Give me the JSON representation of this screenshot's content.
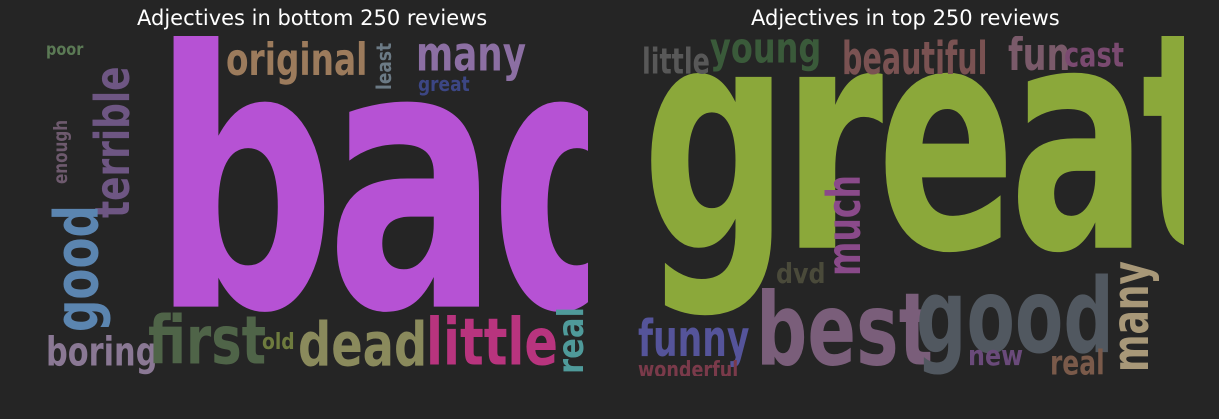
{
  "panels": [
    {
      "title": "Adjectives in bottom 250 reviews",
      "words": [
        {
          "text": "bad",
          "color": "#b652d4"
        },
        {
          "text": "original",
          "color": "#9c7b5c"
        },
        {
          "text": "many",
          "color": "#8c6fa3"
        },
        {
          "text": "least",
          "color": "#6b7a85"
        },
        {
          "text": "great",
          "color": "#3c4684"
        },
        {
          "text": "poor",
          "color": "#5b7a55"
        },
        {
          "text": "terrible",
          "color": "#6e5683"
        },
        {
          "text": "enough",
          "color": "#6e5a6e"
        },
        {
          "text": "good",
          "color": "#5b85b0"
        },
        {
          "text": "boring",
          "color": "#8a7894"
        },
        {
          "text": "first",
          "color": "#4f6448"
        },
        {
          "text": "old",
          "color": "#6e7b3e"
        },
        {
          "text": "dead",
          "color": "#8a8a5c"
        },
        {
          "text": "little",
          "color": "#b8347e"
        },
        {
          "text": "real",
          "color": "#4f9a9a"
        }
      ]
    },
    {
      "title": "Adjectives in top 250 reviews",
      "words": [
        {
          "text": "great",
          "color": "#8ba83a"
        },
        {
          "text": "little",
          "color": "#585858"
        },
        {
          "text": "young",
          "color": "#3a5a3a"
        },
        {
          "text": "beautiful",
          "color": "#7a5252"
        },
        {
          "text": "fun",
          "color": "#7a5a6a"
        },
        {
          "text": "cast",
          "color": "#7a4a70"
        },
        {
          "text": "much",
          "color": "#8a4a8a"
        },
        {
          "text": "dvd",
          "color": "#4a4a3a"
        },
        {
          "text": "funny",
          "color": "#55549a"
        },
        {
          "text": "best",
          "color": "#7a5e7a"
        },
        {
          "text": "good",
          "color": "#515860"
        },
        {
          "text": "many",
          "color": "#a89878"
        },
        {
          "text": "new",
          "color": "#6a4a7a"
        },
        {
          "text": "real",
          "color": "#7a5a4a"
        },
        {
          "text": "wonderful",
          "color": "#7a3a4a"
        }
      ]
    }
  ]
}
